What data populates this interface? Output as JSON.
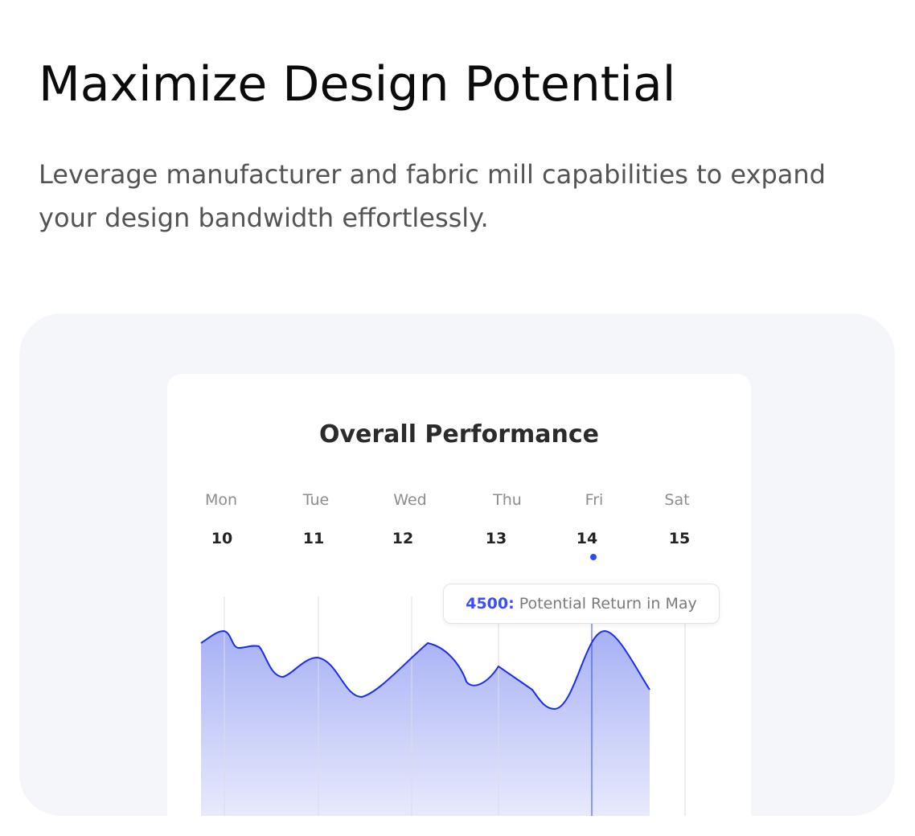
{
  "header": {
    "title": "Maximize Design Potential",
    "subtitle": "Leverage manufacturer and fabric mill capabilities to expand your design bandwidth effortlessly."
  },
  "card": {
    "title": "Overall Performance",
    "days": [
      {
        "day": "Mon",
        "date": "10"
      },
      {
        "day": "Tue",
        "date": "11"
      },
      {
        "day": "Wed",
        "date": "12"
      },
      {
        "day": "Thu",
        "date": "13"
      },
      {
        "day": "Fri",
        "date": "14"
      },
      {
        "day": "Sat",
        "date": "15"
      }
    ],
    "selected_day": "Fri",
    "tooltip": {
      "value": "4500",
      "separator": ":",
      "label": " Potential Return in May"
    },
    "colors": {
      "accent": "#2e4bf5",
      "line": "#1a2cf0",
      "panel": "#f5f6fa"
    }
  }
}
